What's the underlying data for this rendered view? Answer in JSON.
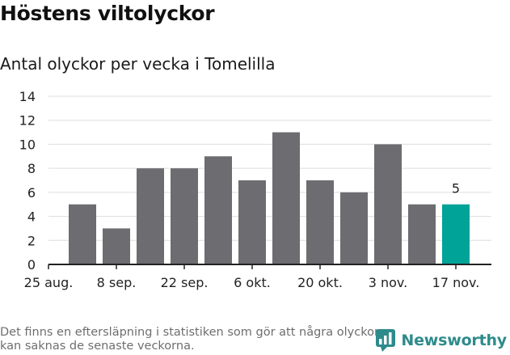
{
  "header": {
    "title": "Höstens viltolyckor",
    "subtitle": "Antal olyckor per vecka i Tomelilla"
  },
  "footer": {
    "note": "Det finns en eftersläpning i statistiken som gör att några olyckor kan saknas de senaste veckorna.",
    "logo_text": "Newsworthy",
    "logo_icon": "newsworthy-chart-bubble-icon"
  },
  "colors": {
    "bar": "#6d6c70",
    "highlight": "#00a398",
    "grid": "#dddddd",
    "axis": "#222222",
    "brand": "#2e8b8b"
  },
  "chart_data": {
    "type": "bar",
    "categories": [
      "25 aug.",
      "1 sep.",
      "8 sep.",
      "15 sep.",
      "22 sep.",
      "29 sep.",
      "6 okt.",
      "13 okt.",
      "20 okt.",
      "27 okt.",
      "3 nov.",
      "10 nov.",
      "17 nov."
    ],
    "tick_labels": [
      "25 aug.",
      "8 sep.",
      "22 sep.",
      "6 okt.",
      "20 okt.",
      "3 nov.",
      "17 nov."
    ],
    "values": [
      null,
      5,
      3,
      8,
      8,
      9,
      7,
      11,
      7,
      6,
      10,
      5,
      5
    ],
    "highlight_index": 12,
    "highlight_label": "5",
    "ylim": [
      0,
      14
    ],
    "yticks": [
      0,
      2,
      4,
      6,
      8,
      10,
      12,
      14
    ],
    "grid": true,
    "xlabel": "",
    "ylabel": ""
  }
}
